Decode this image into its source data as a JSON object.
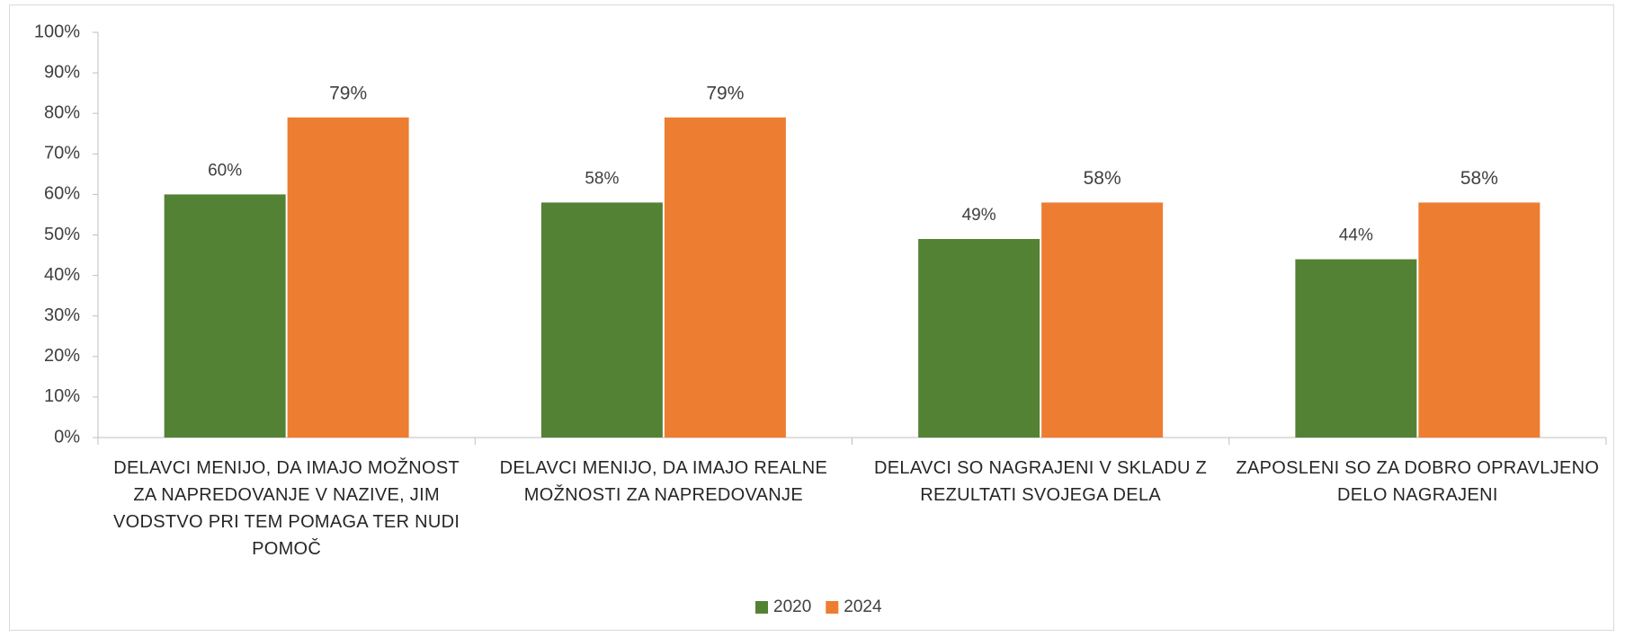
{
  "chart_data": {
    "type": "bar",
    "categories": [
      "DELAVCI MENIJO, DA IMAJO MOŽNOST ZA NAPREDOVANJE V NAZIVE, JIM VODSTVO PRI TEM POMAGA TER NUDI POMOČ",
      "DELAVCI MENIJO, DA IMAJO REALNE MOŽNOSTI ZA NAPREDOVANJE",
      "DELAVCI SO NAGRAJENI V SKLADU Z REZULTATI SVOJEGA DELA",
      "ZAPOSLENI SO ZA DOBRO OPRAVLJENO DELO NAGRAJENI"
    ],
    "series": [
      {
        "name": "2020",
        "color": "#548235",
        "values": [
          60,
          58,
          49,
          44
        ],
        "value_labels": [
          "60%",
          "58%",
          "49%",
          "44%"
        ]
      },
      {
        "name": "2024",
        "color": "#ed7d31",
        "values": [
          79,
          79,
          58,
          58
        ],
        "value_labels": [
          "79%",
          "79%",
          "58%",
          "58%"
        ]
      }
    ],
    "ylim": [
      0,
      100
    ],
    "yticks": [
      {
        "value": 0,
        "label": "0%"
      },
      {
        "value": 10,
        "label": "10%"
      },
      {
        "value": 20,
        "label": "20%"
      },
      {
        "value": 30,
        "label": "30%"
      },
      {
        "value": 40,
        "label": "40%"
      },
      {
        "value": 50,
        "label": "50%"
      },
      {
        "value": 60,
        "label": "60%"
      },
      {
        "value": 70,
        "label": "70%"
      },
      {
        "value": 80,
        "label": "80%"
      },
      {
        "value": 90,
        "label": "90%"
      },
      {
        "value": 100,
        "label": "100%"
      }
    ],
    "grid": false,
    "legend": "bottom"
  }
}
